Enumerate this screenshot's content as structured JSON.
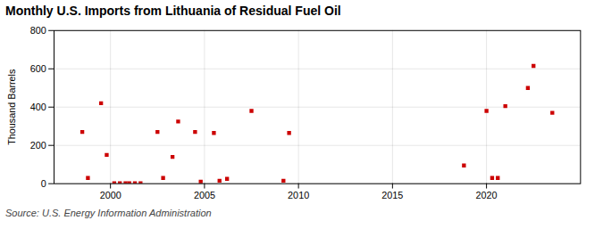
{
  "chart_data": {
    "type": "scatter",
    "title": "Monthly U.S. Imports from Lithuania of Residual Fuel Oil",
    "ylabel": "Thousand Barrels",
    "source": "Source: U.S. Energy Information Administration",
    "color": "#cc0000",
    "marker": "square",
    "grid": true,
    "xlim": [
      1997.0,
      2025.0
    ],
    "ylim": [
      0,
      800
    ],
    "xticks": [
      2000,
      2005,
      2010,
      2015,
      2020
    ],
    "yticks": [
      0,
      200,
      400,
      600,
      800
    ],
    "x": [
      1998.5,
      1998.8,
      1999.5,
      1999.8,
      2000.2,
      2000.5,
      2000.8,
      2001.0,
      2001.3,
      2001.6,
      2002.5,
      2002.8,
      2003.3,
      2003.6,
      2004.5,
      2004.8,
      2005.5,
      2005.8,
      2006.2,
      2007.5,
      2009.2,
      2009.5,
      2018.8,
      2020.0,
      2020.3,
      2020.6,
      2021.0,
      2022.2,
      2022.5,
      2023.5
    ],
    "values": [
      270,
      30,
      420,
      150,
      2,
      2,
      2,
      2,
      2,
      2,
      270,
      30,
      140,
      325,
      270,
      10,
      265,
      15,
      25,
      380,
      15,
      265,
      95,
      380,
      30,
      30,
      405,
      500,
      615,
      370
    ]
  }
}
